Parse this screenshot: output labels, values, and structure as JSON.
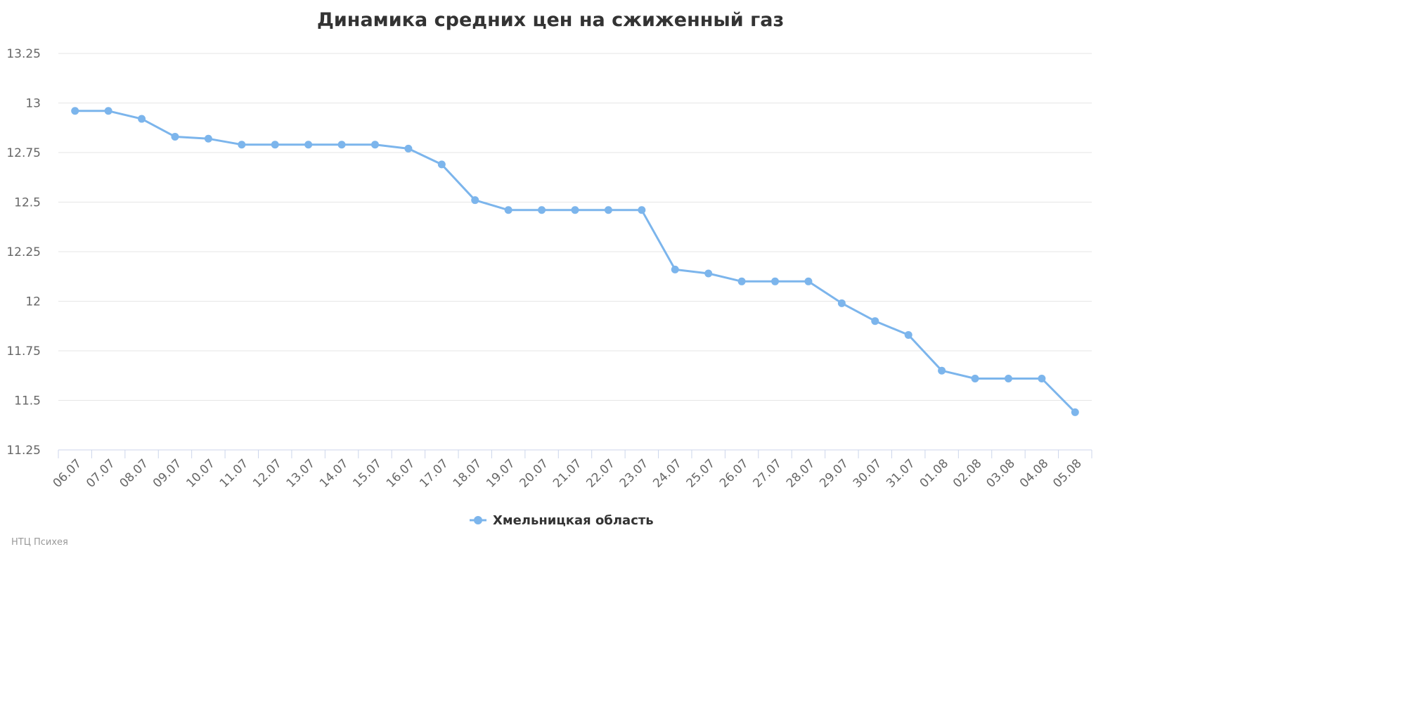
{
  "chart_data": {
    "type": "line",
    "title": "Динамика средних цен на сжиженный газ",
    "xlabel": "",
    "ylabel": "",
    "categories": [
      "06.07",
      "07.07",
      "08.07",
      "09.07",
      "10.07",
      "11.07",
      "12.07",
      "13.07",
      "14.07",
      "15.07",
      "16.07",
      "17.07",
      "18.07",
      "19.07",
      "20.07",
      "21.07",
      "22.07",
      "23.07",
      "24.07",
      "25.07",
      "26.07",
      "27.07",
      "28.07",
      "29.07",
      "30.07",
      "31.07",
      "01.08",
      "02.08",
      "03.08",
      "04.08",
      "05.08"
    ],
    "ylim": [
      11.25,
      13.25
    ],
    "yticks": [
      "11.25",
      "11.5",
      "11.75",
      "12",
      "12.25",
      "12.5",
      "12.75",
      "13",
      "13.25"
    ],
    "grid": true,
    "legend_position": "bottom-center",
    "series": [
      {
        "name": "Хмельницкая область",
        "color": "#7cb5ec",
        "values": [
          12.96,
          12.96,
          12.92,
          12.83,
          12.82,
          12.79,
          12.79,
          12.79,
          12.79,
          12.79,
          12.77,
          12.69,
          12.51,
          12.46,
          12.46,
          12.46,
          12.46,
          12.46,
          12.16,
          12.14,
          12.1,
          12.1,
          12.1,
          11.99,
          11.9,
          11.83,
          11.65,
          11.61,
          11.61,
          11.61,
          11.44
        ]
      }
    ],
    "credits": "НТЦ Психея"
  }
}
